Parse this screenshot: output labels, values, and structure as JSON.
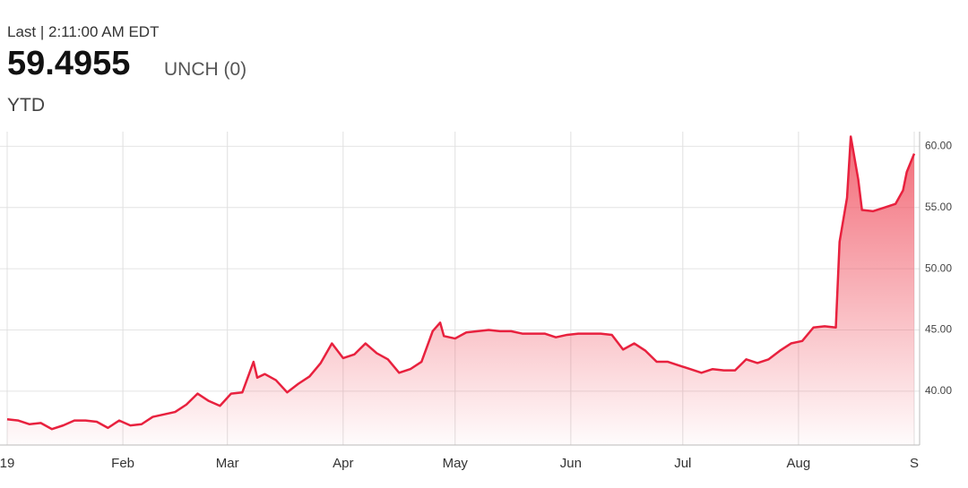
{
  "header": {
    "last": "Last | 2:11:00 AM EDT",
    "price": 59.4955,
    "change": "UNCH (0)",
    "range": "YTD"
  },
  "chart_data": {
    "type": "line",
    "color": "#e8213e",
    "grid": true,
    "x": [
      0,
      3,
      6,
      9,
      12,
      15,
      18,
      21,
      24,
      27,
      30,
      33,
      36,
      39,
      42,
      45,
      48,
      51,
      54,
      57,
      60,
      63,
      66,
      67,
      69,
      72,
      75,
      78,
      81,
      84,
      87,
      90,
      93,
      96,
      99,
      102,
      105,
      108,
      111,
      114,
      116,
      117,
      120,
      123,
      126,
      129,
      132,
      135,
      138,
      141,
      144,
      147,
      150,
      153,
      156,
      159,
      162,
      165,
      168,
      171,
      174,
      177,
      180,
      183,
      186,
      189,
      192,
      195,
      198,
      201,
      204,
      207,
      210,
      213,
      216,
      219,
      222,
      223,
      225,
      226,
      228,
      229,
      232,
      235,
      238,
      240,
      241,
      243
    ],
    "values": [
      37.7,
      37.6,
      37.3,
      37.4,
      36.9,
      37.2,
      37.6,
      37.6,
      37.5,
      37.0,
      37.6,
      37.2,
      37.3,
      37.9,
      38.1,
      38.3,
      38.9,
      39.8,
      39.2,
      38.8,
      39.8,
      39.9,
      42.4,
      41.1,
      41.4,
      40.9,
      39.9,
      40.6,
      41.2,
      42.3,
      43.9,
      42.7,
      43.0,
      43.9,
      43.1,
      42.6,
      41.5,
      41.8,
      42.4,
      44.9,
      45.6,
      44.5,
      44.3,
      44.8,
      44.9,
      45.0,
      44.9,
      44.9,
      44.7,
      44.7,
      44.7,
      44.4,
      44.6,
      44.7,
      44.7,
      44.7,
      44.6,
      43.4,
      43.9,
      43.3,
      42.4,
      42.4,
      42.1,
      41.8,
      41.5,
      41.8,
      41.7,
      41.7,
      42.6,
      42.3,
      42.6,
      43.3,
      43.9,
      44.1,
      45.2,
      45.3,
      45.2,
      52.2,
      55.8,
      60.8,
      57.3,
      54.8,
      54.7,
      55.0,
      55.3,
      56.4,
      57.9,
      59.4
    ],
    "xlim": [
      0,
      243
    ],
    "xticks": [
      {
        "value": 0,
        "label": "19"
      },
      {
        "value": 31,
        "label": "Feb"
      },
      {
        "value": 59,
        "label": "Mar"
      },
      {
        "value": 90,
        "label": "Apr"
      },
      {
        "value": 120,
        "label": "May"
      },
      {
        "value": 151,
        "label": "Jun"
      },
      {
        "value": 181,
        "label": "Jul"
      },
      {
        "value": 212,
        "label": "Aug"
      },
      {
        "value": 243,
        "label": "S"
      }
    ],
    "ylim": [
      35.6,
      61.2
    ],
    "yticks": [
      {
        "value": 40,
        "label": "40.00"
      },
      {
        "value": 45,
        "label": "45.00"
      },
      {
        "value": 50,
        "label": "50.00"
      },
      {
        "value": 55,
        "label": "55.00"
      },
      {
        "value": 60,
        "label": "60.00"
      }
    ]
  }
}
